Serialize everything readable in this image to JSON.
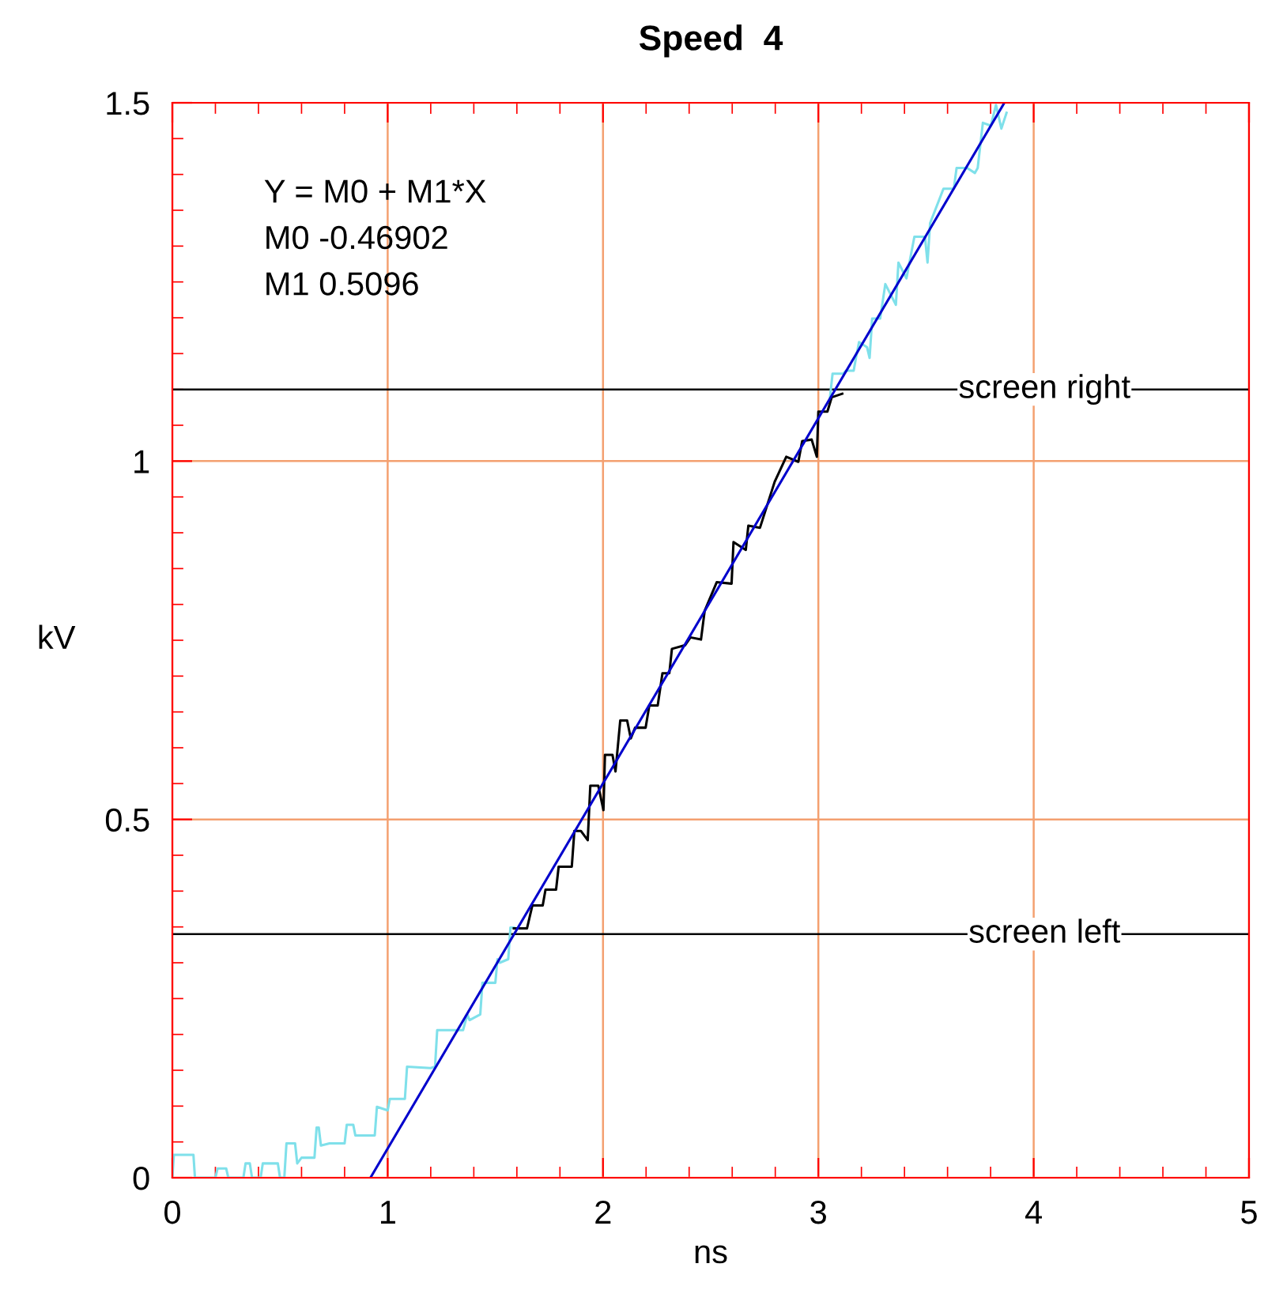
{
  "chart_data": {
    "type": "line",
    "title": "Speed  4",
    "xlabel": "ns",
    "ylabel": "kV",
    "annotations": [
      "Y = M0 + M1*X",
      "M0 -0.46902",
      "M1 0.5096"
    ],
    "xlim": [
      0,
      5
    ],
    "xticks": [
      0,
      1,
      2,
      3,
      4,
      5
    ],
    "ylim": [
      0,
      1.5
    ],
    "yticks": [
      0,
      0.5,
      1,
      1.5
    ],
    "grid": true,
    "ref_lines": [
      {
        "axis": "y",
        "value": 0.34,
        "label": "screen left",
        "color": "#000000"
      },
      {
        "axis": "y",
        "value": 1.1,
        "label": "screen right",
        "color": "#000000"
      }
    ],
    "series": [
      {
        "color": "#7fe0ea",
        "x": [
          0.0,
          0.007,
          0.098,
          0.105,
          0.2,
          0.21,
          0.25,
          0.26,
          0.33,
          0.34,
          0.36,
          0.37,
          0.41,
          0.42,
          0.49,
          0.5,
          0.52,
          0.53,
          0.57,
          0.58,
          0.6,
          0.64,
          0.66,
          0.67,
          0.68,
          0.69,
          0.73,
          0.8,
          0.81,
          0.84,
          0.85,
          0.94,
          0.95,
          1.0,
          1.01,
          1.08,
          1.09,
          1.2,
          1.22,
          1.23,
          1.35,
          1.37,
          1.38,
          1.43,
          1.44,
          1.5,
          1.51,
          1.52,
          1.56,
          1.57,
          1.586,
          1.6,
          3.054,
          3.066,
          3.115,
          3.128,
          3.164,
          3.177,
          3.189,
          3.226,
          3.238,
          3.25,
          3.287,
          3.311,
          3.36,
          3.372,
          3.409,
          3.446,
          3.495,
          3.507,
          3.519,
          3.581,
          3.629,
          3.642,
          3.691,
          3.727,
          3.74,
          3.764,
          3.801,
          3.825,
          3.85,
          3.874
        ],
        "values": [
          0.0,
          0.032,
          0.032,
          0.0,
          0.0,
          0.013,
          0.013,
          0.0,
          0.0,
          0.02,
          0.02,
          0.0,
          0.0,
          0.02,
          0.02,
          0.0,
          0.0,
          0.048,
          0.048,
          0.02,
          0.028,
          0.028,
          0.028,
          0.07,
          0.07,
          0.045,
          0.048,
          0.048,
          0.074,
          0.074,
          0.059,
          0.059,
          0.099,
          0.094,
          0.11,
          0.11,
          0.155,
          0.153,
          0.155,
          0.206,
          0.206,
          0.228,
          0.22,
          0.228,
          0.272,
          0.272,
          0.305,
          0.3,
          0.305,
          0.349,
          0.349,
          null,
          1.089,
          1.122,
          1.122,
          1.126,
          1.126,
          1.148,
          1.166,
          1.159,
          1.144,
          1.199,
          1.199,
          1.247,
          1.218,
          1.277,
          1.255,
          1.313,
          1.313,
          1.277,
          1.332,
          1.38,
          1.38,
          1.409,
          1.409,
          1.402,
          1.409,
          1.472,
          1.468,
          1.497,
          1.464,
          1.486
        ]
      },
      {
        "color": "#000000",
        "x": [
          1.586,
          1.647,
          1.672,
          1.72,
          1.733,
          1.782,
          1.794,
          1.855,
          1.867,
          1.897,
          1.929,
          1.941,
          1.978,
          2.002,
          2.009,
          2.044,
          2.058,
          2.08,
          2.112,
          2.129,
          2.149,
          2.198,
          2.215,
          2.254,
          2.276,
          2.308,
          2.32,
          2.381,
          2.406,
          2.455,
          2.472,
          2.528,
          2.597,
          2.606,
          2.663,
          2.675,
          2.729,
          2.797,
          2.851,
          2.907,
          2.925,
          2.969,
          2.993,
          3.0,
          3.042,
          3.062,
          3.111
        ],
        "values": [
          0.348,
          0.348,
          0.38,
          0.38,
          0.402,
          0.402,
          0.434,
          0.434,
          0.484,
          0.484,
          0.471,
          0.547,
          0.547,
          0.513,
          0.59,
          0.59,
          0.567,
          0.638,
          0.638,
          0.613,
          0.628,
          0.628,
          0.659,
          0.659,
          0.704,
          0.704,
          0.738,
          0.743,
          0.754,
          0.751,
          0.791,
          0.831,
          0.829,
          0.887,
          0.876,
          0.91,
          0.907,
          0.971,
          1.006,
          0.999,
          1.028,
          1.03,
          1.006,
          1.069,
          1.069,
          1.089,
          1.094
        ]
      },
      {
        "color": "#0000cc",
        "x": [
          0.92,
          3.86
        ],
        "values": [
          0.0,
          1.498
        ]
      }
    ]
  }
}
